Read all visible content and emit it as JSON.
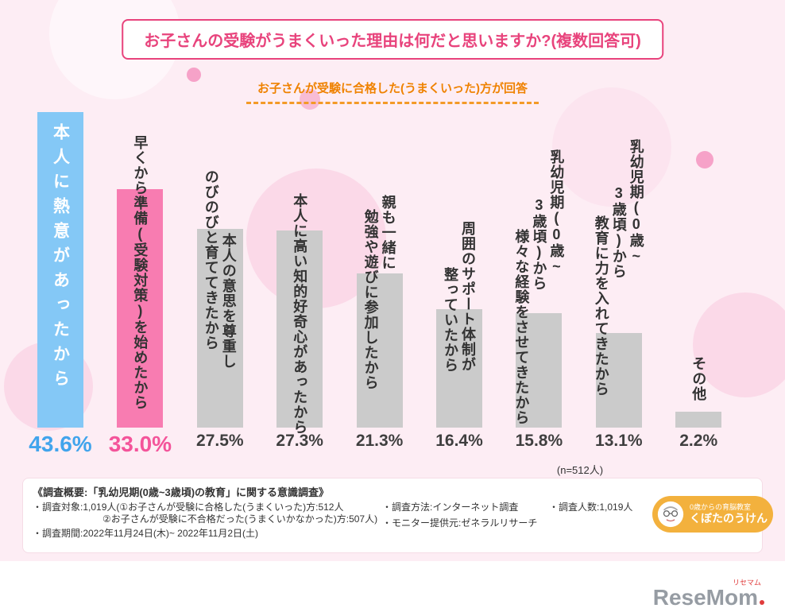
{
  "header": {
    "title": "お子さんの受験がうまくいった理由は何だと思いますか?(複数回答可)",
    "subtitle": "お子さんが受験に合格した(うまくいった)方が回答"
  },
  "chart_data": {
    "type": "bar",
    "title": "お子さんの受験がうまくいった理由は何だと思いますか?(複数回答可)",
    "subtitle": "お子さんが受験に合格した(うまくいった)方が回答",
    "unit": "%",
    "n_label": "(n=512人)",
    "ylim": [
      0,
      50
    ],
    "grid": false,
    "legend": "none",
    "categories": [
      "本人に熱意があったから",
      "早くから準備(受験対策)を始めたから",
      "本人の意思を尊重しのびのびと育ててきたから",
      "本人に高い知的好奇心があったから",
      "親も一緒に勉強や遊びに参加したから",
      "周囲のサポート体制が整っていたから",
      "乳幼児期(0歳~3歳頃)から様々な経験をさせてきたから",
      "乳幼児期(0歳~3歳頃)から教育に力を入れてきたから",
      "その他"
    ],
    "values": [
      43.6,
      33.0,
      27.5,
      27.3,
      21.3,
      16.4,
      15.8,
      13.1,
      2.2
    ],
    "bars": [
      {
        "label_lines": [
          "本人に熱意があったから"
        ],
        "value": 43.6,
        "display": "43.6%",
        "bar_color": "#84c8f6",
        "value_color": "#41a4ec",
        "label_color": "#ffffff"
      },
      {
        "label_lines": [
          "早くから準備(受験対策)を始めたから"
        ],
        "value": 33.0,
        "display": "33.0%",
        "bar_color": "#f87cb1",
        "value_color": "#f4549a",
        "label_color": "#333333"
      },
      {
        "label_lines": [
          "本人の意思を尊重し",
          "のびのびと育ててきたから"
        ],
        "value": 27.5,
        "display": "27.5%",
        "bar_color": "#cbcbcb",
        "value_color": "#3f3f3f",
        "label_color": "#333333"
      },
      {
        "label_lines": [
          "本人に高い知的好奇心があったから"
        ],
        "value": 27.3,
        "display": "27.3%",
        "bar_color": "#cbcbcb",
        "value_color": "#3f3f3f",
        "label_color": "#333333"
      },
      {
        "label_lines": [
          "親も一緒に",
          "勉強や遊びに参加したから"
        ],
        "value": 21.3,
        "display": "21.3%",
        "bar_color": "#cbcbcb",
        "value_color": "#3f3f3f",
        "label_color": "#333333"
      },
      {
        "label_lines": [
          "周囲のサポート体制が",
          "整っていたから"
        ],
        "value": 16.4,
        "display": "16.4%",
        "bar_color": "#cbcbcb",
        "value_color": "#3f3f3f",
        "label_color": "#333333"
      },
      {
        "label_lines": [
          "乳幼児期(0歳~",
          "3歳頃)から",
          "様々な経験をさせてきたから"
        ],
        "value": 15.8,
        "display": "15.8%",
        "bar_color": "#cbcbcb",
        "value_color": "#3f3f3f",
        "label_color": "#333333"
      },
      {
        "label_lines": [
          "乳幼児期(0歳~",
          "3歳頃)から",
          "教育に力を入れてきたから"
        ],
        "value": 13.1,
        "display": "13.1%",
        "bar_color": "#cbcbcb",
        "value_color": "#3f3f3f",
        "label_color": "#333333"
      },
      {
        "label_lines": [
          "その他"
        ],
        "value": 2.2,
        "display": "2.2%",
        "bar_color": "#cbcbcb",
        "value_color": "#3f3f3f",
        "label_color": "#333333"
      }
    ]
  },
  "footer": {
    "overview": "《調査概要:「乳幼児期(0歳~3歳頃)の教育」に関する意識調査》",
    "col1_lines": [
      "・調査対象:1,019人(①お子さんが受験に合格した(うまくいった)方:512人",
      "②お子さんが受験に不合格だった(うまくいかなかった)方:507人)",
      "・調査期間:2022年11月24日(木)~ 2022年11月2日(土)"
    ],
    "col2_lines": [
      "・調査方法:インターネット調査",
      "・モニター提供元:ゼネラルリサーチ"
    ],
    "col3_lines": [
      "・調査人数:1,019人"
    ],
    "badge": {
      "small": "0歳からの育脳教室",
      "large": "くぼたのうけん"
    }
  },
  "logo": {
    "text": "ReseMom",
    "kana": "リセマム"
  },
  "colors": {
    "accent_pink": "#e8437c",
    "accent_orange": "#ef8200",
    "bar_blue": "#84c8f6",
    "bar_pink": "#f87cb1",
    "bar_gray": "#cbcbcb",
    "background": "#fdedf4",
    "badge_yellow": "#f3b13d"
  }
}
